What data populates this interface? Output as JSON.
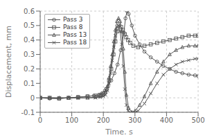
{
  "chart_data": {
    "type": "line",
    "xlabel": "Time, s",
    "ylabel": "Displacement, mm",
    "xlim": [
      0,
      500
    ],
    "ylim": [
      -0.1,
      0.6
    ],
    "xticks": [
      0,
      100,
      200,
      300,
      400,
      500
    ],
    "yticks": [
      -0.1,
      0.0,
      0.1,
      0.2,
      0.3,
      0.4,
      0.5,
      0.6
    ],
    "grid": true,
    "legend": "upper left",
    "series": [
      {
        "name": "Pass 3",
        "marker": "circle",
        "color": "#555555",
        "x": [
          0,
          30,
          60,
          90,
          120,
          150,
          170,
          185,
          195,
          205,
          215,
          225,
          235,
          245,
          255,
          265,
          270,
          275,
          280,
          290,
          300,
          315,
          330,
          350,
          370,
          390,
          410,
          430,
          450,
          470,
          490,
          500
        ],
        "values": [
          0,
          -0.005,
          -0.005,
          0,
          0.005,
          0.01,
          0.015,
          0.02,
          0.03,
          0.05,
          0.08,
          0.12,
          0.17,
          0.23,
          0.33,
          0.45,
          0.55,
          0.6,
          0.58,
          0.5,
          0.43,
          0.37,
          0.32,
          0.28,
          0.25,
          0.22,
          0.2,
          0.18,
          0.17,
          0.16,
          0.155,
          0.15
        ]
      },
      {
        "name": "Pass 8",
        "marker": "square",
        "color": "#555555",
        "x": [
          0,
          30,
          60,
          90,
          120,
          150,
          175,
          190,
          200,
          210,
          218,
          225,
          232,
          238,
          244,
          250,
          256,
          262,
          268,
          272,
          278,
          285,
          295,
          310,
          330,
          350,
          370,
          390,
          410,
          430,
          450,
          470,
          490,
          500
        ],
        "values": [
          0,
          0,
          -0.005,
          0,
          0.005,
          0.01,
          0.015,
          0.02,
          0.03,
          0.06,
          0.12,
          0.2,
          0.3,
          0.39,
          0.46,
          0.5,
          0.49,
          0.47,
          0.44,
          0.42,
          0.4,
          0.38,
          0.36,
          0.35,
          0.36,
          0.37,
          0.38,
          0.39,
          0.4,
          0.41,
          0.42,
          0.43,
          0.43,
          0.43
        ]
      },
      {
        "name": "Pass 13",
        "marker": "triangle",
        "color": "#555555",
        "x": [
          0,
          30,
          60,
          90,
          120,
          150,
          175,
          190,
          200,
          207,
          213,
          218,
          223,
          228,
          233,
          238,
          243,
          248,
          253,
          258,
          263,
          268,
          273,
          280,
          290,
          300,
          315,
          330,
          350,
          370,
          390,
          410,
          430,
          450,
          470,
          490,
          500
        ],
        "values": [
          0,
          0,
          0,
          0,
          0,
          0,
          0.005,
          0.01,
          0.02,
          0.04,
          0.08,
          0.14,
          0.22,
          0.3,
          0.39,
          0.47,
          0.53,
          0.55,
          0.53,
          0.46,
          0.34,
          0.18,
          0.02,
          -0.07,
          -0.1,
          -0.09,
          -0.05,
          0.01,
          0.1,
          0.18,
          0.25,
          0.3,
          0.33,
          0.35,
          0.36,
          0.36,
          0.36
        ]
      },
      {
        "name": "Pass 18",
        "marker": "cross",
        "color": "#555555",
        "x": [
          0,
          30,
          60,
          90,
          120,
          150,
          175,
          190,
          200,
          207,
          213,
          218,
          223,
          228,
          233,
          238,
          243,
          248,
          253,
          258,
          263,
          268,
          273,
          278,
          285,
          295,
          310,
          330,
          350,
          370,
          390,
          410,
          430,
          450,
          470,
          490,
          500
        ],
        "values": [
          0,
          0,
          0,
          0,
          0,
          0,
          0,
          0.005,
          0.01,
          0.02,
          0.05,
          0.1,
          0.17,
          0.26,
          0.35,
          0.43,
          0.49,
          0.5,
          0.46,
          0.37,
          0.22,
          0.06,
          -0.05,
          -0.09,
          -0.1,
          -0.1,
          -0.09,
          -0.04,
          0.03,
          0.1,
          0.16,
          0.2,
          0.23,
          0.25,
          0.26,
          0.27,
          0.27
        ]
      }
    ]
  }
}
